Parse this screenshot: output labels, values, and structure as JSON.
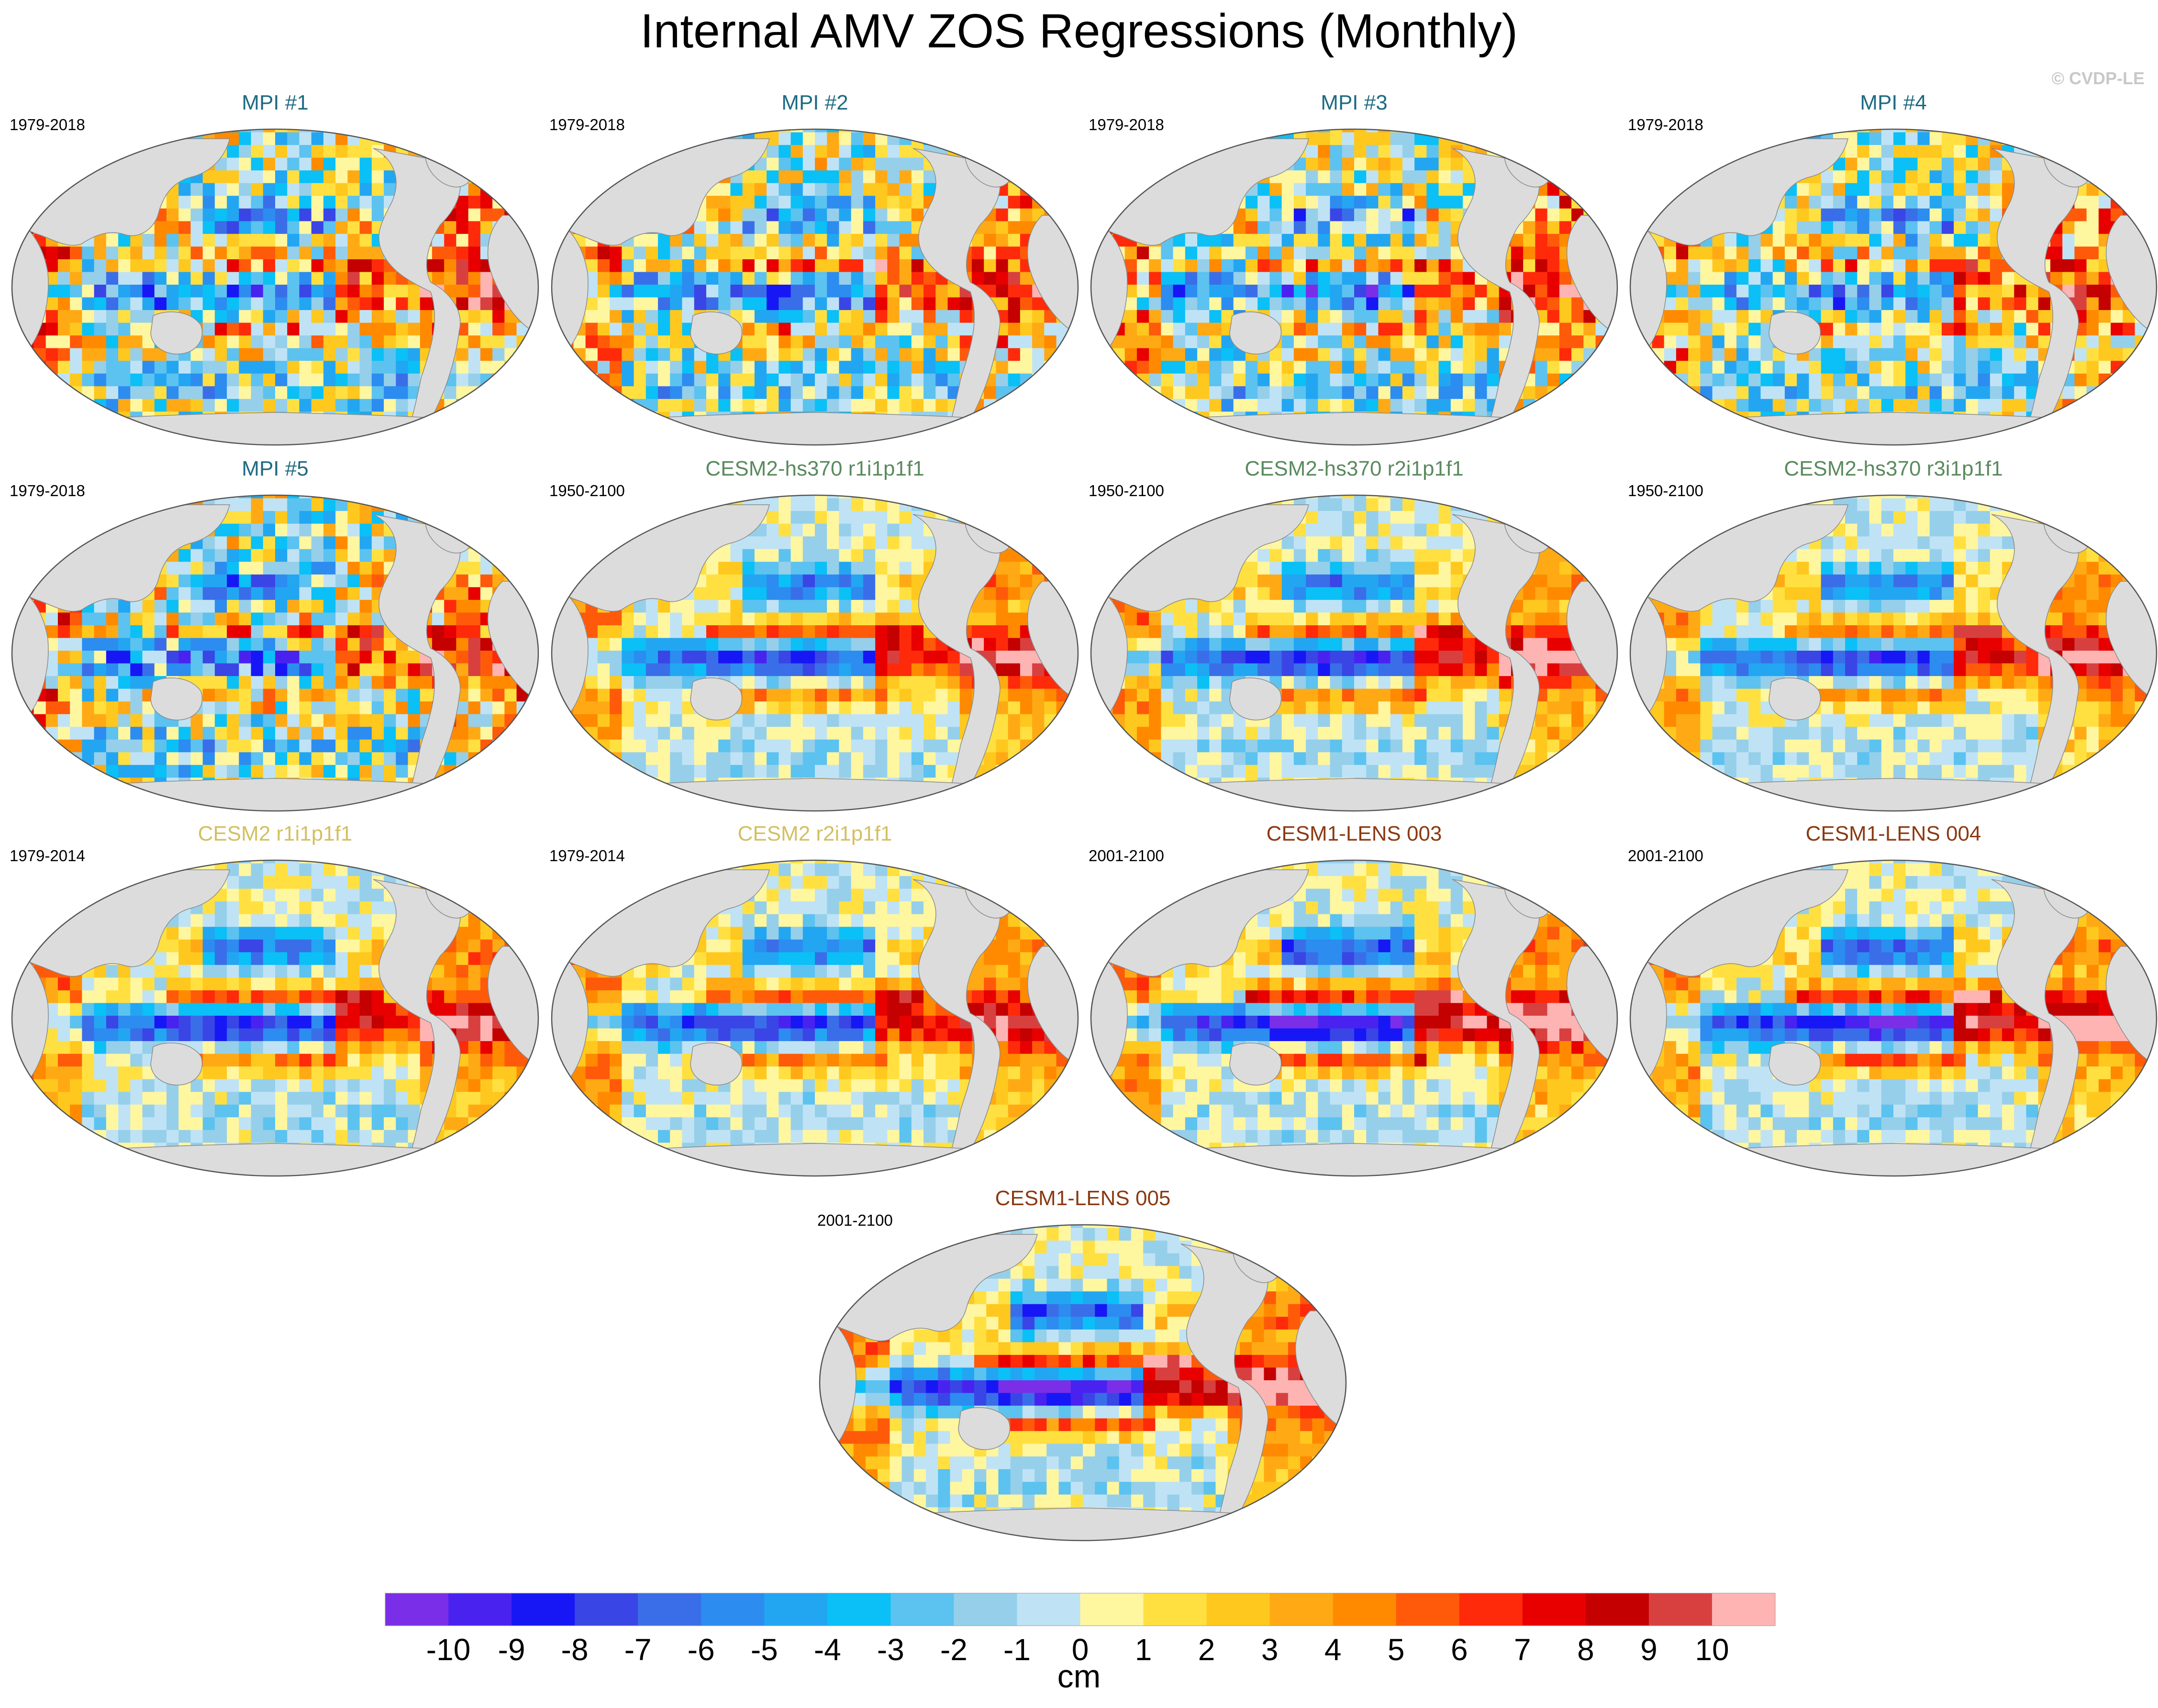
{
  "title": "Internal AMV ZOS Regressions (Monthly)",
  "copyright": "© CVDP-LE",
  "chart_data": {
    "type": "heatmap",
    "title": "Internal AMV ZOS Regressions (Monthly)",
    "projection": "Robinson (global, Pacific-centered)",
    "colorbar": {
      "unit": "cm",
      "tick_labels": [
        "-10",
        "-9",
        "-8",
        "-7",
        "-6",
        "-5",
        "-4",
        "-3",
        "-2",
        "-1",
        "0",
        "1",
        "2",
        "3",
        "4",
        "5",
        "6",
        "7",
        "8",
        "9",
        "10"
      ],
      "colors": [
        "#7b2ee8",
        "#4a22f0",
        "#1717f5",
        "#3a45e6",
        "#3a6ee8",
        "#2c8cf0",
        "#22a6f2",
        "#0ac0f6",
        "#5cc2f0",
        "#96cfea",
        "#bfe3f5",
        "#fff6a0",
        "#ffe040",
        "#ffc81e",
        "#ffaa14",
        "#ff8a00",
        "#ff5a0a",
        "#ff2a0a",
        "#e80000",
        "#c40000",
        "#d84040",
        "#ffb4b4"
      ]
    },
    "panels": [
      {
        "title": "MPI #1",
        "period": "1979-2018",
        "title_color": "#1e6a82"
      },
      {
        "title": "MPI #2",
        "period": "1979-2018",
        "title_color": "#1e6a82"
      },
      {
        "title": "MPI #3",
        "period": "1979-2018",
        "title_color": "#1e6a82"
      },
      {
        "title": "MPI #4",
        "period": "1979-2018",
        "title_color": "#1e6a82"
      },
      {
        "title": "MPI #5",
        "period": "1979-2018",
        "title_color": "#1e6a82"
      },
      {
        "title": "CESM2-hs370 r1i1p1f1",
        "period": "1950-2100",
        "title_color": "#5a8a5e"
      },
      {
        "title": "CESM2-hs370 r2i1p1f1",
        "period": "1950-2100",
        "title_color": "#5a8a5e"
      },
      {
        "title": "CESM2-hs370 r3i1p1f1",
        "period": "1950-2100",
        "title_color": "#5a8a5e"
      },
      {
        "title": "CESM2 r1i1p1f1",
        "period": "1979-2014",
        "title_color": "#d2c062"
      },
      {
        "title": "CESM2 r2i1p1f1",
        "period": "1979-2014",
        "title_color": "#d2c062"
      },
      {
        "title": "CESM1-LENS 003",
        "period": "2001-2100",
        "title_color": "#8b3a12"
      },
      {
        "title": "CESM1-LENS 004",
        "period": "2001-2100",
        "title_color": "#8b3a12"
      },
      {
        "title": "CESM1-LENS 005",
        "period": "2001-2100",
        "title_color": "#8b3a12"
      }
    ]
  }
}
